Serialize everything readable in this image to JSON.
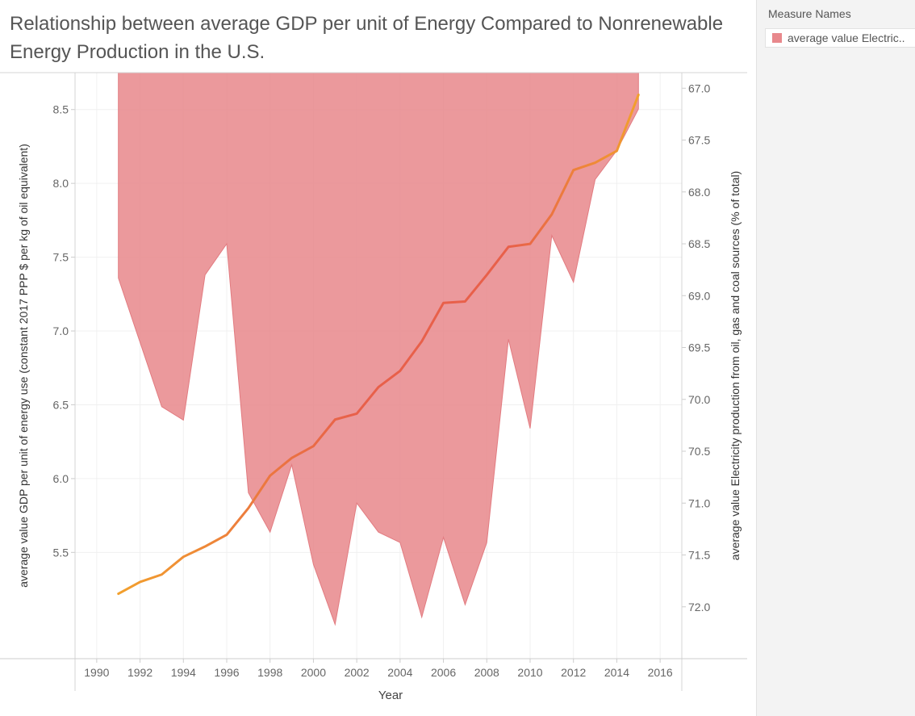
{
  "chart_data": {
    "type": "area",
    "title": "Relationship between average GDP per unit of Energy Compared to Nonrenewable Energy Production in the U.S.",
    "xlabel": "Year",
    "ylabel_left": "average value GDP per unit of energy use (constant 2017 PPP $ per kg of oil equivalent)",
    "ylabel_right": "average value Electricity production from oil, gas and coal sources (% of total)",
    "x_ticks": [
      "1990",
      "1992",
      "1994",
      "1996",
      "1998",
      "2000",
      "2002",
      "2004",
      "2006",
      "2008",
      "2010",
      "2012",
      "2014",
      "2016"
    ],
    "y_left_ticks": [
      "5.5",
      "6.0",
      "6.5",
      "7.0",
      "7.5",
      "8.0",
      "8.5"
    ],
    "y_right_ticks": [
      "67.0",
      "67.5",
      "68.0",
      "68.5",
      "69.0",
      "69.5",
      "70.0",
      "70.5",
      "71.0",
      "71.5",
      "72.0"
    ],
    "x_range": [
      1989,
      2017
    ],
    "y_left_range": [
      4.78,
      8.75
    ],
    "y_right_range": [
      66.85,
      72.5
    ],
    "y_right_reversed": true,
    "grid": true,
    "legend_position": "right",
    "series": [
      {
        "name": "average value Electric..",
        "axis": "right",
        "mark": "area",
        "color": "#e8888c",
        "x": [
          1991,
          1992,
          1993,
          1994,
          1995,
          1996,
          1997,
          1998,
          1999,
          2000,
          2001,
          2002,
          2003,
          2004,
          2005,
          2006,
          2007,
          2008,
          2009,
          2010,
          2011,
          2012,
          2013,
          2014,
          2015
        ],
        "values": [
          68.83,
          69.45,
          70.07,
          70.2,
          68.8,
          68.5,
          70.9,
          71.28,
          70.63,
          71.59,
          72.17,
          71.0,
          71.28,
          71.38,
          72.1,
          71.33,
          71.98,
          71.38,
          69.42,
          70.28,
          68.42,
          68.87,
          67.88,
          67.6,
          67.2
        ]
      },
      {
        "name": "average value GDP per unit of energy use",
        "axis": "left",
        "mark": "line",
        "color_start": "#f2a02d",
        "color_end": "#e8604a",
        "x": [
          1991,
          1992,
          1993,
          1994,
          1995,
          1996,
          1997,
          1998,
          1999,
          2000,
          2001,
          2002,
          2003,
          2004,
          2005,
          2006,
          2007,
          2008,
          2009,
          2010,
          2011,
          2012,
          2013,
          2014,
          2015
        ],
        "values": [
          5.22,
          5.3,
          5.35,
          5.47,
          5.54,
          5.62,
          5.8,
          6.02,
          6.14,
          6.22,
          6.4,
          6.44,
          6.62,
          6.73,
          6.93,
          7.19,
          7.2,
          7.38,
          7.57,
          7.59,
          7.79,
          8.09,
          8.14,
          8.22,
          8.6
        ]
      }
    ]
  },
  "legend": {
    "title": "Measure Names",
    "item_label": "average value Electric.."
  }
}
